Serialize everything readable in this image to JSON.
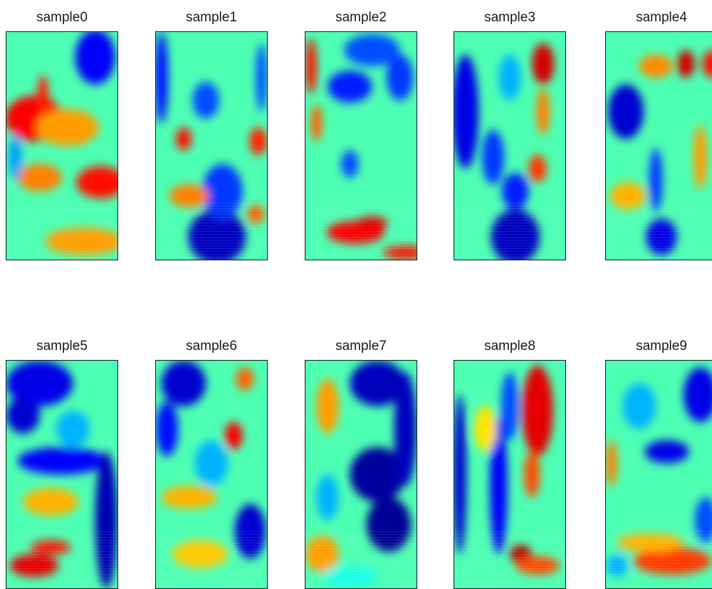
{
  "chart_data": {
    "type": "heatmap",
    "colormap": "jet",
    "grid": false,
    "panels": [
      {
        "title": "sample0",
        "blobs": [
          {
            "x": 0.25,
            "y": 0.38,
            "rx": 0.26,
            "ry": 0.1,
            "v": 0.88
          },
          {
            "x": 0.55,
            "y": 0.42,
            "rx": 0.28,
            "ry": 0.08,
            "v": 0.72
          },
          {
            "x": 0.85,
            "y": 0.66,
            "rx": 0.22,
            "ry": 0.07,
            "v": 0.86
          },
          {
            "x": 0.3,
            "y": 0.64,
            "rx": 0.2,
            "ry": 0.06,
            "v": 0.75
          },
          {
            "x": 0.33,
            "y": 0.28,
            "rx": 0.05,
            "ry": 0.09,
            "v": 0.85
          },
          {
            "x": 0.8,
            "y": 0.11,
            "rx": 0.18,
            "ry": 0.12,
            "v": 0.12
          },
          {
            "x": 0.08,
            "y": 0.55,
            "rx": 0.06,
            "ry": 0.1,
            "v": 0.28
          },
          {
            "x": 0.7,
            "y": 0.92,
            "rx": 0.35,
            "ry": 0.06,
            "v": 0.72
          }
        ]
      },
      {
        "title": "sample1",
        "blobs": [
          {
            "x": 0.05,
            "y": 0.2,
            "rx": 0.06,
            "ry": 0.2,
            "v": 0.14
          },
          {
            "x": 0.55,
            "y": 0.9,
            "rx": 0.26,
            "ry": 0.12,
            "v": 0.06
          },
          {
            "x": 0.6,
            "y": 0.7,
            "rx": 0.18,
            "ry": 0.12,
            "v": 0.18
          },
          {
            "x": 0.45,
            "y": 0.3,
            "rx": 0.12,
            "ry": 0.08,
            "v": 0.2
          },
          {
            "x": 0.25,
            "y": 0.47,
            "rx": 0.07,
            "ry": 0.05,
            "v": 0.86
          },
          {
            "x": 0.92,
            "y": 0.48,
            "rx": 0.08,
            "ry": 0.06,
            "v": 0.84
          },
          {
            "x": 0.3,
            "y": 0.72,
            "rx": 0.18,
            "ry": 0.05,
            "v": 0.75
          },
          {
            "x": 0.9,
            "y": 0.8,
            "rx": 0.08,
            "ry": 0.04,
            "v": 0.78
          },
          {
            "x": 0.95,
            "y": 0.2,
            "rx": 0.05,
            "ry": 0.15,
            "v": 0.2
          }
        ]
      },
      {
        "title": "sample2",
        "blobs": [
          {
            "x": 0.05,
            "y": 0.15,
            "rx": 0.05,
            "ry": 0.12,
            "v": 0.86
          },
          {
            "x": 0.1,
            "y": 0.4,
            "rx": 0.05,
            "ry": 0.08,
            "v": 0.78
          },
          {
            "x": 0.6,
            "y": 0.08,
            "rx": 0.25,
            "ry": 0.07,
            "v": 0.2
          },
          {
            "x": 0.4,
            "y": 0.24,
            "rx": 0.2,
            "ry": 0.07,
            "v": 0.15
          },
          {
            "x": 0.85,
            "y": 0.2,
            "rx": 0.12,
            "ry": 0.1,
            "v": 0.18
          },
          {
            "x": 0.4,
            "y": 0.58,
            "rx": 0.08,
            "ry": 0.06,
            "v": 0.2
          },
          {
            "x": 0.45,
            "y": 0.88,
            "rx": 0.26,
            "ry": 0.05,
            "v": 0.88
          },
          {
            "x": 0.6,
            "y": 0.84,
            "rx": 0.14,
            "ry": 0.03,
            "v": 0.9
          },
          {
            "x": 0.9,
            "y": 0.97,
            "rx": 0.2,
            "ry": 0.03,
            "v": 0.86
          }
        ]
      },
      {
        "title": "sample3",
        "blobs": [
          {
            "x": 0.8,
            "y": 0.14,
            "rx": 0.1,
            "ry": 0.09,
            "v": 0.92
          },
          {
            "x": 0.75,
            "y": 0.6,
            "rx": 0.08,
            "ry": 0.06,
            "v": 0.82
          },
          {
            "x": 0.1,
            "y": 0.35,
            "rx": 0.12,
            "ry": 0.25,
            "v": 0.1
          },
          {
            "x": 0.35,
            "y": 0.55,
            "rx": 0.1,
            "ry": 0.12,
            "v": 0.18
          },
          {
            "x": 0.55,
            "y": 0.9,
            "rx": 0.22,
            "ry": 0.12,
            "v": 0.06
          },
          {
            "x": 0.55,
            "y": 0.7,
            "rx": 0.12,
            "ry": 0.08,
            "v": 0.15
          },
          {
            "x": 0.5,
            "y": 0.2,
            "rx": 0.1,
            "ry": 0.1,
            "v": 0.3
          },
          {
            "x": 0.8,
            "y": 0.35,
            "rx": 0.06,
            "ry": 0.1,
            "v": 0.75
          }
        ]
      },
      {
        "title": "sample4",
        "blobs": [
          {
            "x": 0.72,
            "y": 0.14,
            "rx": 0.08,
            "ry": 0.06,
            "v": 0.92
          },
          {
            "x": 0.95,
            "y": 0.14,
            "rx": 0.08,
            "ry": 0.06,
            "v": 0.86
          },
          {
            "x": 0.45,
            "y": 0.15,
            "rx": 0.15,
            "ry": 0.05,
            "v": 0.74
          },
          {
            "x": 0.18,
            "y": 0.35,
            "rx": 0.16,
            "ry": 0.12,
            "v": 0.08
          },
          {
            "x": 0.5,
            "y": 0.9,
            "rx": 0.14,
            "ry": 0.08,
            "v": 0.1
          },
          {
            "x": 0.45,
            "y": 0.65,
            "rx": 0.06,
            "ry": 0.14,
            "v": 0.18
          },
          {
            "x": 0.85,
            "y": 0.55,
            "rx": 0.06,
            "ry": 0.14,
            "v": 0.72
          },
          {
            "x": 0.2,
            "y": 0.72,
            "rx": 0.16,
            "ry": 0.06,
            "v": 0.7
          }
        ]
      },
      {
        "title": "sample5",
        "blobs": [
          {
            "x": 0.3,
            "y": 0.1,
            "rx": 0.3,
            "ry": 0.1,
            "v": 0.1
          },
          {
            "x": 0.15,
            "y": 0.24,
            "rx": 0.15,
            "ry": 0.08,
            "v": 0.08
          },
          {
            "x": 0.5,
            "y": 0.44,
            "rx": 0.4,
            "ry": 0.06,
            "v": 0.12
          },
          {
            "x": 0.9,
            "y": 0.7,
            "rx": 0.1,
            "ry": 0.3,
            "v": 0.05
          },
          {
            "x": 0.25,
            "y": 0.9,
            "rx": 0.22,
            "ry": 0.05,
            "v": 0.9
          },
          {
            "x": 0.4,
            "y": 0.82,
            "rx": 0.18,
            "ry": 0.03,
            "v": 0.86
          },
          {
            "x": 0.4,
            "y": 0.62,
            "rx": 0.25,
            "ry": 0.06,
            "v": 0.7
          },
          {
            "x": 0.6,
            "y": 0.3,
            "rx": 0.15,
            "ry": 0.08,
            "v": 0.3
          }
        ]
      },
      {
        "title": "sample6",
        "blobs": [
          {
            "x": 0.25,
            "y": 0.1,
            "rx": 0.2,
            "ry": 0.1,
            "v": 0.08
          },
          {
            "x": 0.1,
            "y": 0.3,
            "rx": 0.1,
            "ry": 0.12,
            "v": 0.14
          },
          {
            "x": 0.8,
            "y": 0.08,
            "rx": 0.08,
            "ry": 0.05,
            "v": 0.78
          },
          {
            "x": 0.7,
            "y": 0.33,
            "rx": 0.08,
            "ry": 0.06,
            "v": 0.88
          },
          {
            "x": 0.85,
            "y": 0.75,
            "rx": 0.14,
            "ry": 0.12,
            "v": 0.08
          },
          {
            "x": 0.3,
            "y": 0.6,
            "rx": 0.25,
            "ry": 0.05,
            "v": 0.7
          },
          {
            "x": 0.4,
            "y": 0.85,
            "rx": 0.25,
            "ry": 0.06,
            "v": 0.68
          },
          {
            "x": 0.5,
            "y": 0.45,
            "rx": 0.15,
            "ry": 0.1,
            "v": 0.3
          }
        ]
      },
      {
        "title": "sample7",
        "blobs": [
          {
            "x": 0.65,
            "y": 0.1,
            "rx": 0.25,
            "ry": 0.1,
            "v": 0.06
          },
          {
            "x": 0.65,
            "y": 0.5,
            "rx": 0.25,
            "ry": 0.12,
            "v": 0.03
          },
          {
            "x": 0.75,
            "y": 0.72,
            "rx": 0.2,
            "ry": 0.12,
            "v": 0.02
          },
          {
            "x": 0.9,
            "y": 0.3,
            "rx": 0.1,
            "ry": 0.25,
            "v": 0.06
          },
          {
            "x": 0.2,
            "y": 0.2,
            "rx": 0.1,
            "ry": 0.12,
            "v": 0.72
          },
          {
            "x": 0.15,
            "y": 0.85,
            "rx": 0.15,
            "ry": 0.08,
            "v": 0.72
          },
          {
            "x": 0.2,
            "y": 0.6,
            "rx": 0.1,
            "ry": 0.1,
            "v": 0.3
          },
          {
            "x": 0.4,
            "y": 0.95,
            "rx": 0.25,
            "ry": 0.05,
            "v": 0.4
          }
        ]
      },
      {
        "title": "sample8",
        "blobs": [
          {
            "x": 0.75,
            "y": 0.22,
            "rx": 0.14,
            "ry": 0.2,
            "v": 0.9
          },
          {
            "x": 0.7,
            "y": 0.5,
            "rx": 0.07,
            "ry": 0.1,
            "v": 0.8
          },
          {
            "x": 0.6,
            "y": 0.85,
            "rx": 0.1,
            "ry": 0.04,
            "v": 0.95
          },
          {
            "x": 0.75,
            "y": 0.9,
            "rx": 0.2,
            "ry": 0.04,
            "v": 0.8
          },
          {
            "x": 0.05,
            "y": 0.5,
            "rx": 0.06,
            "ry": 0.35,
            "v": 0.08
          },
          {
            "x": 0.4,
            "y": 0.55,
            "rx": 0.08,
            "ry": 0.3,
            "v": 0.12
          },
          {
            "x": 0.5,
            "y": 0.2,
            "rx": 0.08,
            "ry": 0.15,
            "v": 0.2
          },
          {
            "x": 0.28,
            "y": 0.3,
            "rx": 0.1,
            "ry": 0.1,
            "v": 0.65
          }
        ]
      },
      {
        "title": "sample9",
        "blobs": [
          {
            "x": 0.85,
            "y": 0.15,
            "rx": 0.15,
            "ry": 0.12,
            "v": 0.1
          },
          {
            "x": 0.55,
            "y": 0.4,
            "rx": 0.2,
            "ry": 0.05,
            "v": 0.1
          },
          {
            "x": 0.6,
            "y": 0.88,
            "rx": 0.35,
            "ry": 0.06,
            "v": 0.82
          },
          {
            "x": 0.4,
            "y": 0.8,
            "rx": 0.3,
            "ry": 0.04,
            "v": 0.7
          },
          {
            "x": 0.05,
            "y": 0.45,
            "rx": 0.05,
            "ry": 0.1,
            "v": 0.75
          },
          {
            "x": 0.1,
            "y": 0.9,
            "rx": 0.1,
            "ry": 0.05,
            "v": 0.3
          },
          {
            "x": 0.3,
            "y": 0.2,
            "rx": 0.15,
            "ry": 0.1,
            "v": 0.3
          },
          {
            "x": 0.9,
            "y": 0.7,
            "rx": 0.1,
            "ry": 0.1,
            "v": 0.2
          }
        ]
      }
    ]
  }
}
